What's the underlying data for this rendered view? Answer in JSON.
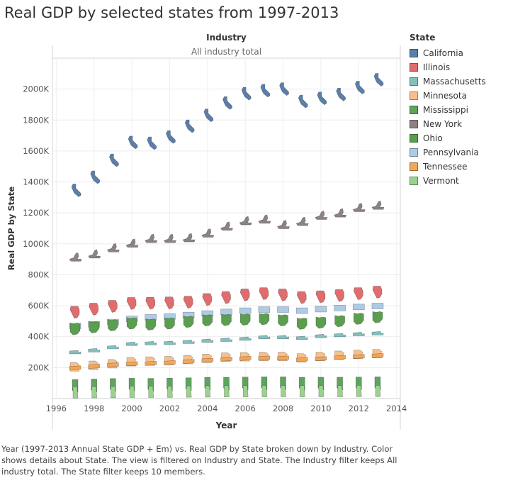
{
  "title": "Real GDP by selected states from 1997-2013",
  "caption": "Year (1997-2013 Annual State GDP + Em) vs. Real GDP by State broken down by Industry.  Color shows details about State. The view is filtered on Industry and State. The Industry filter keeps All industry total. The State filter keeps 10 members.",
  "legend": {
    "title": "State",
    "items": [
      {
        "label": "California",
        "color": "#5b7fa8"
      },
      {
        "label": "Illinois",
        "color": "#e06d6d"
      },
      {
        "label": "Massachusetts",
        "color": "#82c0be"
      },
      {
        "label": "Minnesota",
        "color": "#f6c08e"
      },
      {
        "label": "Mississippi",
        "color": "#5ea35e"
      },
      {
        "label": "New York",
        "color": "#8c8282"
      },
      {
        "label": "Ohio",
        "color": "#5b9e4f"
      },
      {
        "label": "Pennsylvania",
        "color": "#aecbe6"
      },
      {
        "label": "Tennessee",
        "color": "#f2a65a"
      },
      {
        "label": "Vermont",
        "color": "#9ad28e"
      }
    ]
  },
  "chart_data": {
    "type": "scatter",
    "title": "Real GDP by selected states from 1997-2013",
    "header_title": "Industry",
    "header_value": "All industry total",
    "xlabel": "Year",
    "ylabel": "Real GDP by State",
    "xlim": [
      1995.8,
      2014.2
    ],
    "ylim": [
      0,
      2200000
    ],
    "x_ticks": [
      1996,
      1998,
      2000,
      2002,
      2004,
      2006,
      2008,
      2010,
      2012,
      2014
    ],
    "y_ticks": [
      200000,
      400000,
      600000,
      800000,
      1000000,
      1200000,
      1400000,
      1600000,
      1800000,
      2000000
    ],
    "y_tick_labels": [
      "200K",
      "400K",
      "600K",
      "800K",
      "1000K",
      "1200K",
      "1400K",
      "1600K",
      "1800K",
      "2000K"
    ],
    "grid": true,
    "marker": "state-shape",
    "x": [
      1997,
      1998,
      1999,
      2000,
      2001,
      2002,
      2003,
      2004,
      2005,
      2006,
      2007,
      2008,
      2009,
      2010,
      2011,
      2012,
      2013
    ],
    "series": [
      {
        "name": "California",
        "values": [
          1345000,
          1430000,
          1540000,
          1655000,
          1650000,
          1690000,
          1760000,
          1830000,
          1910000,
          1970000,
          1990000,
          2000000,
          1920000,
          1940000,
          1965000,
          2010000,
          2060000
        ]
      },
      {
        "name": "New York",
        "values": [
          915000,
          935000,
          975000,
          1005000,
          1035000,
          1035000,
          1040000,
          1070000,
          1115000,
          1150000,
          1160000,
          1125000,
          1145000,
          1185000,
          1200000,
          1235000,
          1250000
        ]
      },
      {
        "name": "Illinois",
        "values": [
          560000,
          580000,
          598000,
          617000,
          618000,
          620000,
          625000,
          642000,
          655000,
          672000,
          680000,
          672000,
          655000,
          660000,
          668000,
          680000,
          690000
        ]
      },
      {
        "name": "Pennsylvania",
        "values": [
          470000,
          480000,
          495000,
          515000,
          525000,
          530000,
          540000,
          550000,
          560000,
          568000,
          575000,
          575000,
          568000,
          578000,
          585000,
          592000,
          598000
        ]
      },
      {
        "name": "Ohio",
        "values": [
          453000,
          465000,
          478000,
          490000,
          483000,
          490000,
          500000,
          510000,
          512000,
          515000,
          518000,
          510000,
          488000,
          495000,
          505000,
          520000,
          530000
        ]
      },
      {
        "name": "Massachusetts",
        "values": [
          298000,
          310000,
          330000,
          352000,
          356000,
          358000,
          365000,
          372000,
          378000,
          385000,
          395000,
          395000,
          390000,
          402000,
          408000,
          415000,
          420000
        ]
      },
      {
        "name": "Minnesota",
        "values": [
          205000,
          215000,
          225000,
          238000,
          242000,
          245000,
          252000,
          260000,
          268000,
          270000,
          272000,
          272000,
          263000,
          272000,
          280000,
          285000,
          290000
        ]
      },
      {
        "name": "Tennessee",
        "values": [
          198000,
          208000,
          218000,
          225000,
          228000,
          232000,
          240000,
          248000,
          255000,
          260000,
          262000,
          262000,
          252000,
          258000,
          266000,
          272000,
          278000
        ]
      },
      {
        "name": "Mississippi",
        "values": [
          82000,
          85000,
          88000,
          90000,
          89000,
          91000,
          93000,
          96000,
          96000,
          98000,
          99000,
          99000,
          96000,
          97000,
          97000,
          98000,
          99000
        ]
      },
      {
        "name": "Vermont",
        "values": [
          40000,
          41000,
          42000,
          43000,
          43000,
          44000,
          45000,
          46000,
          47000,
          47000,
          48000,
          48000,
          47000,
          48000,
          48000,
          49000,
          49000
        ]
      }
    ]
  }
}
